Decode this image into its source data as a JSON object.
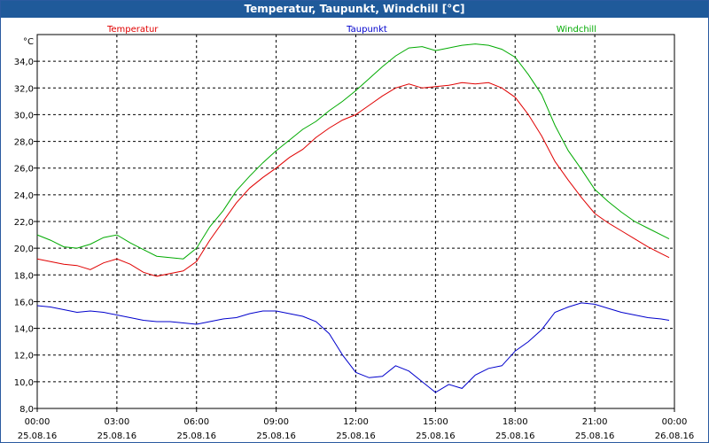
{
  "chart_data": {
    "type": "line",
    "title": "Temperatur, Taupunkt, Windchill [°C]",
    "y_unit_label": "°C",
    "ylim": [
      8.0,
      36.0
    ],
    "y_ticks": [
      8.0,
      10.0,
      12.0,
      14.0,
      16.0,
      18.0,
      20.0,
      22.0,
      24.0,
      26.0,
      28.0,
      30.0,
      32.0,
      34.0
    ],
    "y_tick_labels": [
      "8,0",
      "10,0",
      "12,0",
      "14,0",
      "16,0",
      "18,0",
      "20,0",
      "22,0",
      "24,0",
      "26,0",
      "28,0",
      "30,0",
      "32,0",
      "34,0"
    ],
    "x_ticks": [
      {
        "time": "00:00",
        "date": "25.08.16"
      },
      {
        "time": "03:00",
        "date": "25.08.16"
      },
      {
        "time": "06:00",
        "date": "25.08.16"
      },
      {
        "time": "09:00",
        "date": "25.08.16"
      },
      {
        "time": "12:00",
        "date": "25.08.16"
      },
      {
        "time": "15:00",
        "date": "25.08.16"
      },
      {
        "time": "18:00",
        "date": "25.08.16"
      },
      {
        "time": "21:00",
        "date": "25.08.16"
      },
      {
        "time": "00:00",
        "date": "26.08.16"
      }
    ],
    "x_hours": [
      0,
      0.5,
      1,
      1.5,
      2,
      2.5,
      3,
      3.5,
      4,
      4.5,
      5,
      5.5,
      6,
      6.5,
      7,
      7.5,
      8,
      8.5,
      9,
      9.5,
      10,
      10.5,
      11,
      11.5,
      12,
      12.5,
      13,
      13.5,
      14,
      14.5,
      15,
      15.5,
      16,
      16.5,
      17,
      17.5,
      18,
      18.5,
      19,
      19.5,
      20,
      20.5,
      21,
      21.5,
      22,
      22.5,
      23,
      23.5,
      23.8
    ],
    "grid": true,
    "series": [
      {
        "name": "Temperatur",
        "color": "#e00000",
        "values": [
          19.2,
          19.0,
          18.8,
          18.7,
          18.4,
          18.9,
          19.2,
          18.8,
          18.2,
          17.9,
          18.1,
          18.3,
          19.0,
          20.6,
          22.0,
          23.4,
          24.5,
          25.3,
          26.0,
          26.8,
          27.4,
          28.3,
          29.0,
          29.6,
          30.0,
          30.7,
          31.4,
          32.0,
          32.3,
          32.0,
          32.1,
          32.2,
          32.4,
          32.3,
          32.4,
          32.0,
          31.3,
          30.0,
          28.4,
          26.5,
          25.1,
          23.8,
          22.6,
          21.9,
          21.3,
          20.7,
          20.1,
          19.6,
          19.3
        ]
      },
      {
        "name": "Taupunkt",
        "color": "#0000cc",
        "values": [
          15.7,
          15.6,
          15.4,
          15.2,
          15.3,
          15.2,
          15.0,
          14.8,
          14.6,
          14.5,
          14.5,
          14.4,
          14.3,
          14.5,
          14.7,
          14.8,
          15.1,
          15.3,
          15.3,
          15.1,
          14.9,
          14.5,
          13.6,
          12.0,
          10.7,
          10.3,
          10.4,
          11.2,
          10.8,
          10.0,
          9.2,
          9.8,
          9.5,
          10.5,
          11.0,
          11.2,
          12.3,
          13.0,
          13.9,
          15.2,
          15.6,
          15.9,
          15.8,
          15.5,
          15.2,
          15.0,
          14.8,
          14.7,
          14.6
        ]
      },
      {
        "name": "Windchill",
        "color": "#00aa00",
        "values": [
          21.0,
          20.6,
          20.1,
          20.0,
          20.3,
          20.8,
          21.0,
          20.4,
          19.9,
          19.4,
          19.3,
          19.2,
          20.0,
          21.6,
          22.8,
          24.3,
          25.4,
          26.4,
          27.3,
          28.1,
          28.9,
          29.5,
          30.3,
          31.0,
          31.8,
          32.7,
          33.6,
          34.4,
          35.0,
          35.1,
          34.8,
          35.0,
          35.2,
          35.3,
          35.2,
          34.9,
          34.3,
          33.0,
          31.5,
          29.2,
          27.3,
          25.9,
          24.4,
          23.5,
          22.7,
          22.0,
          21.5,
          21.0,
          20.7
        ]
      }
    ]
  }
}
